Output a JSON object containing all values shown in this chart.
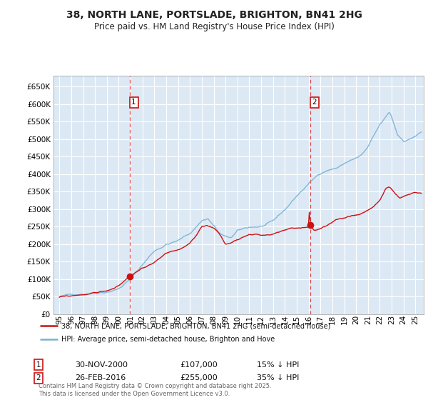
{
  "title": "38, NORTH LANE, PORTSLADE, BRIGHTON, BN41 2HG",
  "subtitle": "Price paid vs. HM Land Registry's House Price Index (HPI)",
  "ylim": [
    0,
    680000
  ],
  "xlim_start": 1994.5,
  "xlim_end": 2025.7,
  "bg_color": "#dce9f5",
  "grid_color": "#ffffff",
  "hpi_color": "#7ab0d4",
  "price_color": "#cc1111",
  "vline_color": "#dd3333",
  "sale1_x": 2000.92,
  "sale1_y": 107000,
  "sale2_x": 2016.15,
  "sale2_y": 255000,
  "legend_line1": "38, NORTH LANE, PORTSLADE, BRIGHTON, BN41 2HG (semi-detached house)",
  "legend_line2": "HPI: Average price, semi-detached house, Brighton and Hove",
  "sale1_date": "30-NOV-2000",
  "sale1_price": "£107,000",
  "sale1_hpi": "15% ↓ HPI",
  "sale2_date": "26-FEB-2016",
  "sale2_price": "£255,000",
  "sale2_hpi": "35% ↓ HPI",
  "footnote": "Contains HM Land Registry data © Crown copyright and database right 2025.\nThis data is licensed under the Open Government Licence v3.0."
}
